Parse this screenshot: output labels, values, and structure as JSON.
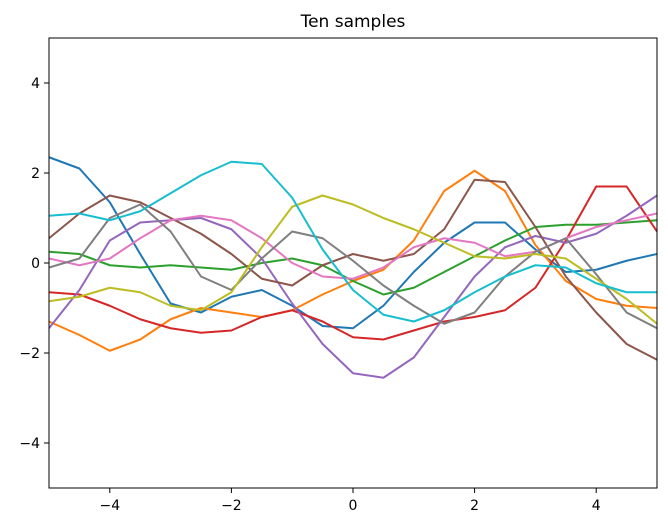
{
  "chart_data": {
    "type": "line",
    "title": "Ten samples",
    "xlabel": "",
    "ylabel": "",
    "xlim": [
      -5,
      5
    ],
    "ylim": [
      -5,
      5
    ],
    "xticks": [
      -4,
      -2,
      0,
      2,
      4
    ],
    "xtick_labels": [
      "−4",
      "−2",
      "0",
      "2",
      "4"
    ],
    "yticks": [
      -4,
      -2,
      0,
      2,
      4
    ],
    "ytick_labels": [
      "−4",
      "−2",
      "0",
      "2",
      "4"
    ],
    "grid": false,
    "x": [
      -5,
      -4.5,
      -4,
      -3.5,
      -3,
      -2.5,
      -2,
      -1.5,
      -1,
      -0.5,
      0,
      0.5,
      1,
      1.5,
      2,
      2.5,
      3,
      3.5,
      4,
      4.5,
      5
    ],
    "series": [
      {
        "color": "#1f77b4",
        "values": [
          2.35,
          2.1,
          1.35,
          0.2,
          -0.9,
          -1.1,
          -0.75,
          -0.6,
          -0.95,
          -1.4,
          -1.45,
          -0.95,
          -0.2,
          0.45,
          0.9,
          0.9,
          0.3,
          -0.2,
          -0.15,
          0.05,
          0.2
        ]
      },
      {
        "color": "#ff7f0e",
        "values": [
          -1.3,
          -1.6,
          -1.95,
          -1.7,
          -1.25,
          -1.0,
          -1.1,
          -1.2,
          -1.05,
          -0.7,
          -0.4,
          -0.15,
          0.5,
          1.6,
          2.05,
          1.6,
          0.4,
          -0.4,
          -0.8,
          -0.95,
          -1.0
        ]
      },
      {
        "color": "#2ca02c",
        "values": [
          0.25,
          0.2,
          -0.05,
          -0.1,
          -0.05,
          -0.1,
          -0.15,
          0.0,
          0.1,
          -0.05,
          -0.4,
          -0.7,
          -0.55,
          -0.2,
          0.15,
          0.5,
          0.8,
          0.85,
          0.85,
          0.9,
          0.95
        ]
      },
      {
        "color": "#d62728",
        "values": [
          -0.65,
          -0.7,
          -0.95,
          -1.25,
          -1.45,
          -1.55,
          -1.5,
          -1.2,
          -1.05,
          -1.3,
          -1.65,
          -1.7,
          -1.5,
          -1.3,
          -1.2,
          -1.05,
          -0.55,
          0.5,
          1.7,
          1.7,
          0.7
        ]
      },
      {
        "color": "#9467bd",
        "values": [
          -1.45,
          -0.6,
          0.5,
          0.9,
          0.95,
          1.0,
          0.75,
          0.1,
          -0.9,
          -1.8,
          -2.45,
          -2.55,
          -2.1,
          -1.2,
          -0.3,
          0.35,
          0.6,
          0.45,
          0.65,
          1.05,
          1.5
        ]
      },
      {
        "color": "#8c564b",
        "values": [
          0.55,
          1.1,
          1.5,
          1.35,
          1.0,
          0.65,
          0.2,
          -0.35,
          -0.5,
          -0.05,
          0.2,
          0.05,
          0.2,
          0.75,
          1.85,
          1.8,
          0.8,
          -0.3,
          -1.1,
          -1.8,
          -2.15
        ]
      },
      {
        "color": "#e377c2",
        "values": [
          0.1,
          -0.05,
          0.1,
          0.55,
          0.95,
          1.05,
          0.95,
          0.55,
          0.0,
          -0.3,
          -0.35,
          -0.1,
          0.35,
          0.55,
          0.45,
          0.15,
          0.25,
          0.55,
          0.8,
          0.95,
          1.1
        ]
      },
      {
        "color": "#7f7f7f",
        "values": [
          -0.1,
          0.1,
          1.0,
          1.3,
          0.7,
          -0.3,
          -0.6,
          0.1,
          0.7,
          0.55,
          0.05,
          -0.5,
          -0.95,
          -1.35,
          -1.1,
          -0.3,
          0.25,
          0.55,
          -0.25,
          -1.1,
          -1.45
        ]
      },
      {
        "color": "#bcbd22",
        "values": [
          -0.85,
          -0.75,
          -0.55,
          -0.65,
          -0.95,
          -1.05,
          -0.65,
          0.35,
          1.25,
          1.5,
          1.3,
          1.0,
          0.75,
          0.45,
          0.15,
          0.1,
          0.2,
          0.1,
          -0.35,
          -0.8,
          -1.35
        ]
      },
      {
        "color": "#17becf",
        "values": [
          1.05,
          1.1,
          0.95,
          1.15,
          1.55,
          1.95,
          2.25,
          2.2,
          1.45,
          0.3,
          -0.6,
          -1.15,
          -1.3,
          -1.05,
          -0.65,
          -0.3,
          -0.05,
          -0.1,
          -0.45,
          -0.65,
          -0.65
        ]
      }
    ]
  }
}
